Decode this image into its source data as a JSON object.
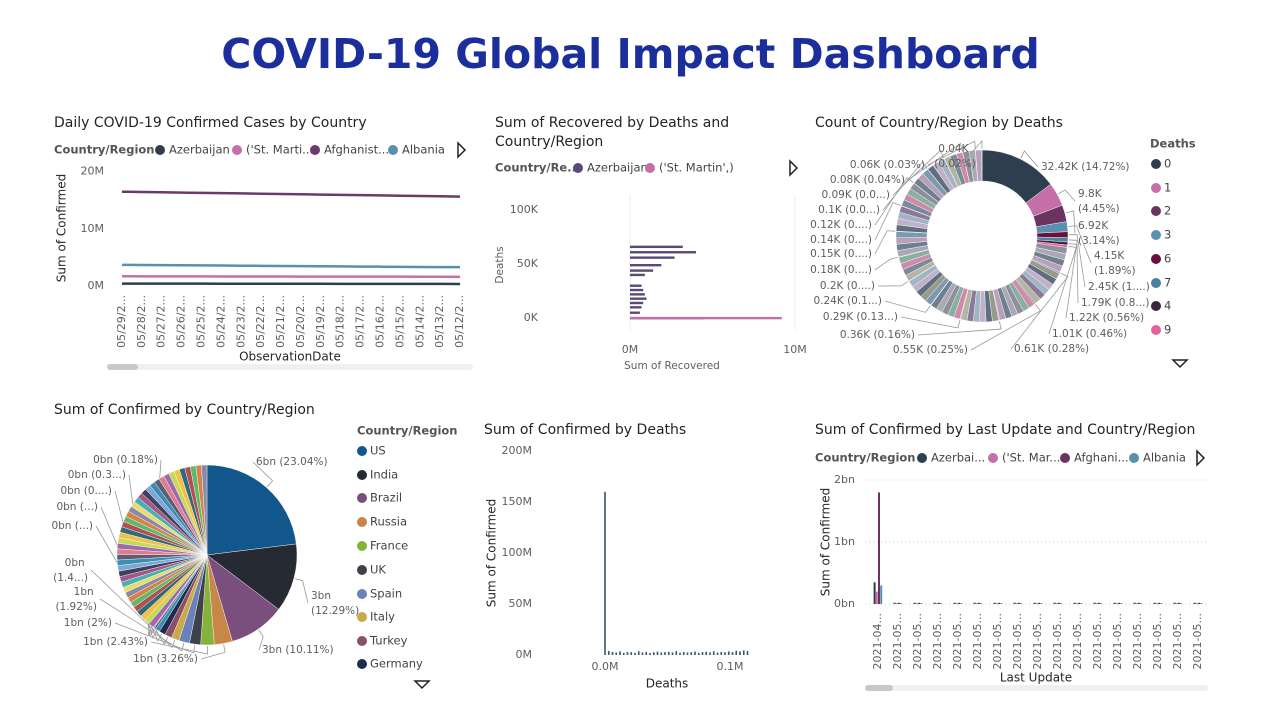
{
  "title": "COVID-19 Global Impact Dashboard",
  "chart_data": [
    {
      "type": "line",
      "title": "Daily COVID-19 Confirmed Cases by Country",
      "legend_title": "Country/Region",
      "categories": [
        "05/29/2...",
        "05/28/2...",
        "05/27/2...",
        "05/26/2...",
        "05/25/2...",
        "05/24/2...",
        "05/23/2...",
        "05/22/2...",
        "05/21/2...",
        "05/20/2...",
        "05/19/2...",
        "05/18/2...",
        "05/17/2...",
        "05/16/2...",
        "05/15/2...",
        "05/14/2...",
        "05/13/2...",
        "05/12/2..."
      ],
      "series": [
        {
          "name": "Azerbaijan",
          "color": "#2e3e4e",
          "values": [
            420000,
            420000,
            410000,
            410000,
            410000,
            400000,
            400000,
            400000,
            390000,
            390000,
            390000,
            380000,
            380000,
            380000,
            370000,
            370000,
            370000,
            360000
          ]
        },
        {
          "name": "('St. Marti...",
          "color": "#c46fa7",
          "values": [
            1700000,
            1690000,
            1690000,
            1680000,
            1680000,
            1670000,
            1670000,
            1660000,
            1660000,
            1650000,
            1650000,
            1640000,
            1640000,
            1630000,
            1630000,
            1620000,
            1610000,
            1600000
          ]
        },
        {
          "name": "Afghanist...",
          "color": "#6b3a6b",
          "values": [
            16500000,
            16450000,
            16400000,
            16350000,
            16300000,
            16250000,
            16200000,
            16150000,
            16100000,
            16050000,
            16000000,
            15950000,
            15900000,
            15850000,
            15800000,
            15750000,
            15700000,
            15650000
          ]
        },
        {
          "name": "Albania",
          "color": "#5b8fb0",
          "values": [
            3700000,
            3680000,
            3650000,
            3630000,
            3600000,
            3580000,
            3550000,
            3530000,
            3500000,
            3480000,
            3450000,
            3430000,
            3400000,
            3380000,
            3350000,
            3330000,
            3310000,
            3300000
          ]
        }
      ],
      "x_label": "ObservationDate",
      "y_label": "Sum of Confirmed",
      "ylim": [
        0,
        21000000
      ],
      "yticks": [
        {
          "value": 0,
          "label": "0M"
        },
        {
          "value": 10000000,
          "label": "10M"
        },
        {
          "value": 20000000,
          "label": "20M"
        }
      ]
    },
    {
      "type": "hbar",
      "title": "Sum of Recovered by Deaths and Country/Region",
      "legend_title": "Country/Re...",
      "series": [
        {
          "name": "Azerbaijan",
          "color": "#5a4a78",
          "y": [
            66000,
            61000,
            56000,
            49000,
            44000,
            40000,
            30000,
            26000,
            22000,
            18000,
            14000,
            10000,
            5000,
            0
          ],
          "values": [
            3200000,
            4000000,
            2700000,
            1900000,
            1400000,
            900000,
            700000,
            800000,
            900000,
            1000000,
            800000,
            700000,
            600000,
            4500000
          ]
        },
        {
          "name": "('St. Martin',)",
          "color": "#c46fa7",
          "y": [
            0
          ],
          "values": [
            9200000
          ]
        }
      ],
      "x_label": "Sum of Recovered",
      "y_label": "Deaths",
      "xlim": [
        0,
        10000000
      ],
      "xticks": [
        {
          "value": 0,
          "label": "0M"
        },
        {
          "value": 10000000,
          "label": "10M"
        }
      ],
      "ylim": [
        -11000,
        114000
      ],
      "yticks": [
        {
          "value": 0,
          "label": "0K"
        },
        {
          "value": 50000,
          "label": "50K"
        },
        {
          "value": 100000,
          "label": "100K"
        }
      ]
    },
    {
      "type": "donut",
      "title": "Count of Country/Region by Deaths",
      "legend_title": "Deaths",
      "categories": [
        0,
        1,
        2,
        3,
        6,
        7,
        4,
        9,
        null,
        null,
        null,
        null,
        null,
        null,
        null,
        null,
        null,
        null,
        null,
        null,
        null,
        null,
        null,
        null,
        null,
        null,
        null,
        null,
        null,
        null,
        null,
        null,
        null,
        null,
        null,
        null,
        null,
        null,
        null,
        null,
        null,
        null,
        null,
        null,
        null,
        null,
        null,
        null,
        null,
        null,
        null,
        null,
        null,
        null,
        null,
        null,
        null,
        null,
        null,
        null,
        null,
        null,
        null,
        null,
        null,
        null,
        null,
        null,
        null,
        null,
        null,
        null,
        null,
        null,
        null,
        null,
        null,
        null,
        null,
        null,
        null,
        null,
        null
      ],
      "values": [
        32420,
        9800,
        6920,
        4150,
        2450,
        1790,
        1220,
        1010,
        2620,
        2620,
        2620,
        2620,
        610,
        2620,
        2620,
        2620,
        2620,
        2620,
        2620,
        550,
        2620,
        2620,
        2620,
        2620,
        2620,
        2620,
        360,
        2620,
        2620,
        2620,
        2620,
        2620,
        2620,
        290,
        2620,
        2620,
        2620,
        2620,
        2620,
        240,
        2620,
        2620,
        2620,
        2620,
        2620,
        200,
        2620,
        2620,
        2620,
        2620,
        180,
        2620,
        2620,
        2620,
        2620,
        150,
        2620,
        2620,
        2620,
        2620,
        140,
        2620,
        2620,
        2620,
        2620,
        120,
        2620,
        2620,
        2620,
        100,
        2620,
        2620,
        2620,
        90,
        2620,
        2620,
        2620,
        80,
        2620,
        2620,
        60,
        2620,
        40
      ],
      "value_labels": [
        "32.42K (14.72%)",
        "9.8K (4.45%)",
        "6.92K (3.14%)",
        "4.15K (1.89%)",
        "2.45K (1....)",
        "1.79K (0.8...)",
        "1.22K (0.56%)",
        "1.01K (0.46%)",
        null,
        null,
        null,
        null,
        "0.61K (0.28%)",
        null,
        null,
        null,
        null,
        null,
        null,
        "0.55K (0.25%)",
        null,
        null,
        null,
        null,
        null,
        null,
        "0.36K (0.16%)",
        null,
        null,
        null,
        null,
        null,
        null,
        "0.29K (0.13...)",
        null,
        null,
        null,
        null,
        null,
        "0.24K (0.1...)",
        null,
        null,
        null,
        null,
        null,
        "0.2K (0....)",
        null,
        null,
        null,
        null,
        "0.18K (0....)",
        null,
        null,
        null,
        null,
        "0.15K (0....)",
        null,
        null,
        null,
        null,
        "0.14K (0....)",
        null,
        null,
        null,
        null,
        "0.12K (0....)",
        null,
        null,
        null,
        "0.1K (0.0...)",
        null,
        null,
        null,
        "0.09K (0.0...)",
        null,
        null,
        null,
        "0.08K (0.04%)",
        null,
        null,
        "0.06K (0.03%)",
        null,
        "0.04K (0.02%)"
      ],
      "colors": [
        "#2e3e4e",
        "#c46fa7",
        "#6b3360",
        "#5b8fb0",
        "#6b0f3a",
        "#4d7fa0",
        "#3b2340",
        "#e85fa0"
      ],
      "palette": [
        "#8f8f9c",
        "#a9a9b6",
        "#6f7f8f",
        "#b8a0b8",
        "#7a9ab0",
        "#9a9a8a",
        "#5f6f7f",
        "#c0b0c8",
        "#a0b4c4",
        "#8a7a9a",
        "#b4b4a4",
        "#7a8a9a",
        "#d08aa8",
        "#88b0a0"
      ]
    },
    {
      "type": "pie",
      "title": "Sum of Confirmed by Country/Region",
      "legend_title": "Country/Region",
      "categories": [
        "US",
        "India",
        "Brazil",
        "Russia",
        "France",
        "UK",
        "Spain",
        "Italy",
        "Turkey",
        "Germany",
        null,
        null,
        null,
        null,
        null,
        null,
        null,
        null,
        null,
        null,
        null,
        null,
        null,
        null,
        null,
        null,
        null,
        null,
        null,
        null,
        null,
        null,
        null,
        null,
        null,
        null,
        null,
        null,
        null,
        null,
        null,
        null,
        null,
        null,
        null,
        null,
        null,
        null,
        null,
        null,
        null,
        null,
        null
      ],
      "values": [
        6,
        3.2,
        2.633,
        0.849,
        0.633,
        0.521,
        0.5,
        0.365,
        0.33,
        0.3,
        0.2,
        0.09,
        0.047,
        0.2593,
        0.2593,
        0.2593,
        0.2593,
        0.2593,
        0.2593,
        0.2593,
        0.2593,
        0.2593,
        0.2593,
        0.2593,
        0.2593,
        0.2593,
        0.2593,
        0.2593,
        0.2593,
        0.2593,
        0.2593,
        0.2593,
        0.2593,
        0.2593,
        0.2593,
        0.2593,
        0.2593,
        0.2593,
        0.2593,
        0.2593,
        0.2593,
        0.2593,
        0.2593,
        0.2593,
        0.2593,
        0.2593,
        0.2593,
        0.2593,
        0.2593,
        0.2593,
        0.2593,
        0.2593,
        0.2593
      ],
      "value_labels": [
        "6bn (23.04%)",
        "3bn (12.29%)",
        "3bn (10.11%)",
        "1bn (3.26%)",
        "1bn (2.43%)",
        "1bn (2%)",
        "1bn (1.92%)",
        "0bn (1.4...)",
        "0bn (...)",
        "0bn (...)",
        "0bn (0....)",
        "0bn (0.3...)",
        "0bn (0.18%)",
        null,
        null,
        null,
        null,
        null,
        null,
        null,
        null,
        null,
        null,
        null,
        null,
        null,
        null,
        null,
        null,
        null,
        null,
        null,
        null,
        null,
        null,
        null,
        null,
        null,
        null,
        null,
        null,
        null,
        null,
        null,
        null,
        null,
        null,
        null,
        null,
        null,
        null,
        null,
        null
      ],
      "colors": [
        "#12578b",
        "#262a33",
        "#7b4f7d",
        "#c78748",
        "#86b23b",
        "#3c414c",
        "#6b81bb",
        "#c9a94b",
        "#8c4f63",
        "#1f2b4f"
      ],
      "palette": [
        "#3a8fb0",
        "#5c5c7a",
        "#e07b8a",
        "#9b6bb0",
        "#c8d858",
        "#f0c048",
        "#2e6a7a",
        "#b05050",
        "#62b86a",
        "#d4844a",
        "#8a8aa8",
        "#e8dc70",
        "#48b0b4",
        "#a45888",
        "#40405a",
        "#7fa6d8"
      ]
    },
    {
      "type": "column",
      "title": "Sum of Confirmed by Deaths",
      "color": "#3e5568",
      "x": [
        0,
        3000,
        6000,
        9000,
        12000,
        15000,
        18000,
        21000,
        24000,
        27000,
        30000,
        33000,
        36000,
        39000,
        42000,
        45000,
        48000,
        51000,
        54000,
        57000,
        60000,
        63000,
        66000,
        69000,
        72000,
        75000,
        78000,
        81000,
        84000,
        87000,
        90000,
        93000,
        96000,
        99000,
        102000,
        105000,
        108000,
        111000,
        114000
      ],
      "values": [
        160000000,
        4000000,
        3000000,
        2500000,
        3500000,
        2000000,
        3000000,
        2800000,
        2200000,
        3600000,
        2500000,
        3000000,
        2000000,
        2700000,
        3300000,
        2400000,
        2900000,
        3100000,
        2600000,
        3800000,
        2300000,
        3000000,
        2500000,
        2800000,
        3400000,
        2100000,
        2900000,
        3200000,
        2600000,
        3700000,
        2400000,
        3000000,
        2700000,
        3500000,
        2800000,
        4200000,
        3600000,
        4500000,
        3900000
      ],
      "x_label": "Deaths",
      "y_label": "Sum of Confirmed",
      "xlim": [
        -12000,
        148000
      ],
      "xticks": [
        {
          "value": 0,
          "label": "0.0M"
        },
        {
          "value": 100000,
          "label": "0.1M"
        }
      ],
      "ylim": [
        0,
        200000000
      ],
      "yticks": [
        {
          "value": 0,
          "label": "0M"
        },
        {
          "value": 50000000,
          "label": "50M"
        },
        {
          "value": 100000000,
          "label": "100M"
        },
        {
          "value": 150000000,
          "label": "150M"
        },
        {
          "value": 200000000,
          "label": "200M"
        }
      ]
    },
    {
      "type": "column",
      "title": "Sum of Confirmed by Last Update and Country/Region",
      "legend_title": "Country/Region",
      "categories": [
        "2021-04...",
        "2021-05...",
        "2021-05...",
        "2021-05...",
        "2021-05...",
        "2021-05...",
        "2021-05...",
        "2021-05...",
        "2021-05...",
        "2021-05...",
        "2021-05...",
        "2021-05...",
        "2021-05...",
        "2021-05...",
        "2021-05...",
        "2021-05...",
        "2021-05..."
      ],
      "series": [
        {
          "name": "Azerbai...",
          "color": "#2e3e4e",
          "values": [
            0.35,
            0.02,
            0.02,
            0.02,
            0.02,
            0.02,
            0.02,
            0.02,
            0.02,
            0.02,
            0.02,
            0.02,
            0.02,
            0.02,
            0.02,
            0.02,
            0.02
          ]
        },
        {
          "name": "('St. Mar...",
          "color": "#c46fa7",
          "values": [
            0.2,
            0.015,
            0.015,
            0.015,
            0.015,
            0.015,
            0.015,
            0.015,
            0.015,
            0.015,
            0.015,
            0.015,
            0.015,
            0.015,
            0.015,
            0.015,
            0.015
          ]
        },
        {
          "name": "Afghani...",
          "color": "#6b3360",
          "values": [
            1.8,
            0.02,
            0.02,
            0.02,
            0.02,
            0.02,
            0.02,
            0.02,
            0.02,
            0.02,
            0.02,
            0.02,
            0.02,
            0.02,
            0.02,
            0.02,
            0.02
          ]
        },
        {
          "name": "Albania",
          "color": "#5b8fb0",
          "values": [
            0.3,
            0.015,
            0.015,
            0.015,
            0.015,
            0.015,
            0.015,
            0.015,
            0.015,
            0.015,
            0.015,
            0.015,
            0.015,
            0.015,
            0.015,
            0.015,
            0.015
          ]
        }
      ],
      "x_label": "Last Update",
      "y_label": "Sum of Confirmed",
      "grid": true,
      "ylim": [
        0,
        2
      ],
      "yticks": [
        {
          "value": 0,
          "label": "0bn"
        },
        {
          "value": 1,
          "label": "1bn"
        },
        {
          "value": 2,
          "label": "2bn"
        }
      ]
    }
  ]
}
